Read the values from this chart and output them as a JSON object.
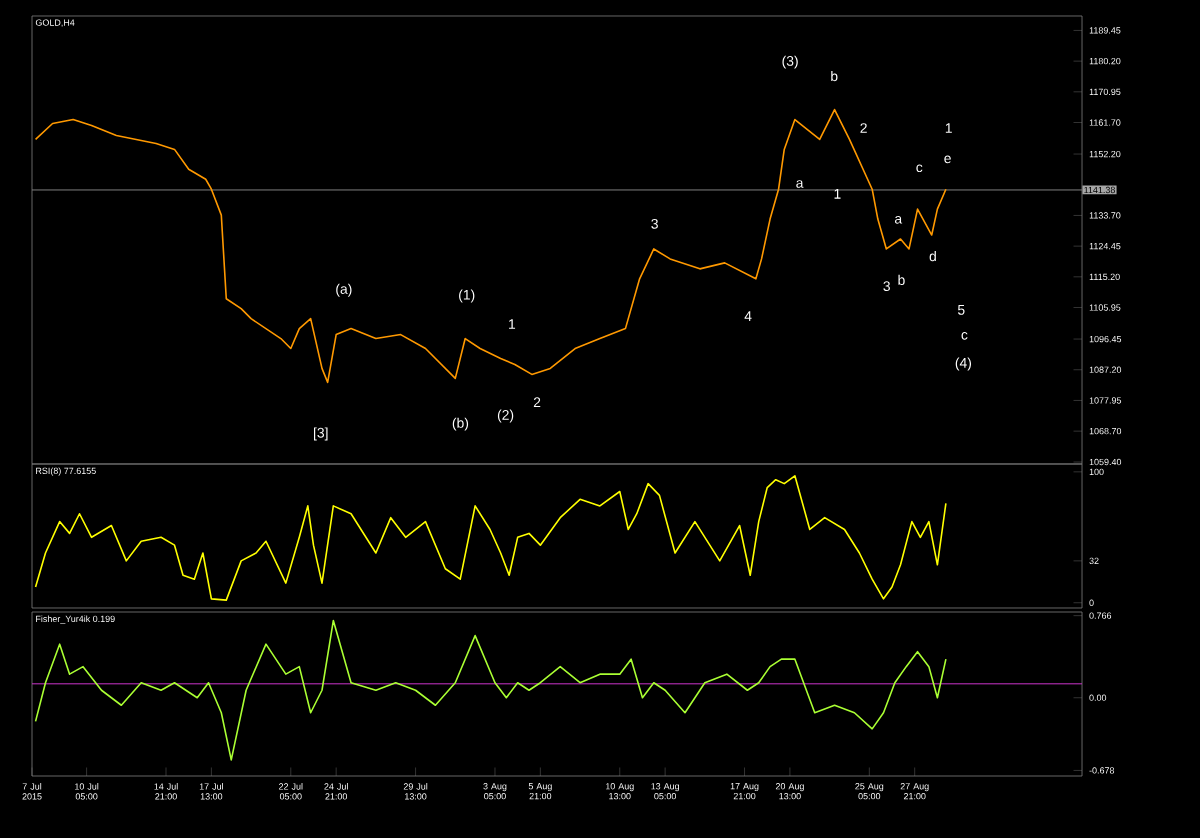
{
  "chart_data": [
    {
      "type": "line",
      "title": "GOLD,H4",
      "x": [
        "2015-07-07T05:00",
        "2015-07-08T05:00",
        "2015-07-09T10:00",
        "2015-07-10T12:00",
        "2015-07-11T23:00",
        "2015-07-14T07:00",
        "2015-07-15T09:00",
        "2015-07-16T05:00",
        "2015-07-17T05:00",
        "2015-07-17T13:00",
        "2015-07-18T03:00",
        "2015-07-18T10:00",
        "2015-07-19T07:00",
        "2015-07-19T21:00",
        "2015-07-21T15:00",
        "2015-07-22T05:00",
        "2015-07-22T17:00",
        "2015-07-23T09:00",
        "2015-07-24T01:00",
        "2015-07-24T09:00",
        "2015-07-24T21:00",
        "2015-07-25T18:00",
        "2015-07-27T05:00",
        "2015-07-28T16:00",
        "2015-07-30T03:00",
        "2015-07-31T21:00",
        "2015-08-01T11:00",
        "2015-08-02T08:00",
        "2015-08-03T13:00",
        "2015-08-04T09:00",
        "2015-08-05T09:00",
        "2015-08-06T11:00",
        "2015-08-07T22:00",
        "2015-08-09T09:00",
        "2015-08-10T21:00",
        "2015-08-11T17:00",
        "2015-08-12T13:00",
        "2015-08-13T12:00",
        "2015-08-15T06:00",
        "2015-08-16T17:00",
        "2015-08-18T13:00",
        "2015-08-18T21:00",
        "2015-08-19T09:00",
        "2015-08-19T21:00",
        "2015-08-20T05:00",
        "2015-08-20T20:00",
        "2015-08-22T07:00",
        "2015-08-23T04:00",
        "2015-08-24T01:00",
        "2015-08-25T09:00",
        "2015-08-25T17:00",
        "2015-08-26T05:00",
        "2015-08-27T01:00",
        "2015-08-27T13:00",
        "2015-08-28T01:00",
        "2015-08-28T21:00",
        "2015-08-29T05:00",
        "2015-08-29T17:00"
      ],
      "series": [
        {
          "color": "#ff9900",
          "values": [
            1156.6,
            1161.4,
            1162.6,
            1160.8,
            1157.8,
            1155.4,
            1153.6,
            1147.6,
            1144.6,
            1141.6,
            1133.8,
            1108.6,
            1105.6,
            1102.6,
            1096.6,
            1093.6,
            1099.6,
            1102.6,
            1087.6,
            1083.4,
            1097.8,
            1099.6,
            1096.6,
            1097.8,
            1093.6,
            1084.6,
            1096.6,
            1093.6,
            1090.6,
            1088.8,
            1085.8,
            1087.6,
            1093.6,
            1096.6,
            1099.6,
            1114.6,
            1123.6,
            1120.6,
            1117.6,
            1119.4,
            1114.6,
            1120.6,
            1132.6,
            1141.6,
            1153.6,
            1162.6,
            1156.6,
            1165.6,
            1156.6,
            1141.6,
            1132.6,
            1123.6,
            1126.6,
            1123.6,
            1135.6,
            1127.8,
            1135.6,
            1141.6
          ]
        }
      ],
      "xlim": [
        "2015-07-07T00:00",
        "2015-09-06T17:00"
      ],
      "ylim": [
        1058.8,
        1193.8
      ],
      "yticks": [
        1189.45,
        {
          "value": 1180.2,
          "label": "1180.20"
        },
        1170.95,
        {
          "value": 1161.7,
          "label": "1161.70"
        },
        {
          "value": 1152.2,
          "label": "1152.20"
        },
        {
          "value": 1133.7,
          "label": "1133.70"
        },
        1124.45,
        {
          "value": 1115.2,
          "label": "1115.20"
        },
        1105.95,
        1096.45,
        {
          "value": 1087.2,
          "label": "1087.20"
        },
        1077.95,
        {
          "value": 1068.7,
          "label": "1068.70"
        },
        {
          "value": 1059.4,
          "label": "1059.40"
        }
      ],
      "tick_labels": "y",
      "ref_lines": [
        {
          "axis": "y",
          "value": 1141.38,
          "label": "1141.38",
          "color": "#808080"
        }
      ],
      "annotations": [
        "(a)",
        "(1)",
        "[3]",
        "(b)",
        "(2)",
        "1",
        "2",
        "3",
        "4",
        "(3)",
        "b",
        "a",
        "1",
        "2",
        "3",
        "a",
        "b",
        "c",
        "d",
        "e",
        "1",
        "5",
        "c",
        "(4)"
      ]
    },
    {
      "type": "line",
      "title": "RSI(8) 77.6155",
      "x": [
        "2015-07-07T05:00",
        "2015-07-07T19:00",
        "2015-07-08T15:00",
        "2015-07-09T05:00",
        "2015-07-09T19:00",
        "2015-07-10T12:00",
        "2015-07-11T16:00",
        "2015-07-12T13:00",
        "2015-07-13T10:00",
        "2015-07-14T14:00",
        "2015-07-15T09:00",
        "2015-07-15T21:00",
        "2015-07-16T13:00",
        "2015-07-17T01:00",
        "2015-07-17T13:00",
        "2015-07-18T10:00",
        "2015-07-19T07:00",
        "2015-07-20T04:00",
        "2015-07-20T18:00",
        "2015-07-21T22:00",
        "2015-07-22T17:00",
        "2015-07-23T05:00",
        "2015-07-23T13:00",
        "2015-07-24T01:00",
        "2015-07-24T17:00",
        "2015-07-25T18:00",
        "2015-07-27T05:00",
        "2015-07-28T02:00",
        "2015-07-28T23:00",
        "2015-07-30T03:00",
        "2015-07-31T07:00",
        "2015-08-01T04:00",
        "2015-08-02T01:00",
        "2015-08-02T22:00",
        "2015-08-03T13:00",
        "2015-08-04T01:00",
        "2015-08-04T13:00",
        "2015-08-05T05:00",
        "2015-08-05T21:00",
        "2015-08-07T01:00",
        "2015-08-08T05:00",
        "2015-08-09T09:00",
        "2015-08-10T13:00",
        "2015-08-11T01:00",
        "2015-08-11T13:00",
        "2015-08-12T05:00",
        "2015-08-12T21:00",
        "2015-08-13T19:00",
        "2015-08-14T23:00",
        "2015-08-16T10:00",
        "2015-08-17T14:00",
        "2015-08-18T05:00",
        "2015-08-18T17:00",
        "2015-08-19T05:00",
        "2015-08-19T17:00",
        "2015-08-20T05:00",
        "2015-08-20T20:00",
        "2015-08-21T17:00",
        "2015-08-22T14:00",
        "2015-08-23T18:00",
        "2015-08-24T15:00",
        "2015-08-25T09:00",
        "2015-08-26T01:00",
        "2015-08-26T13:00",
        "2015-08-27T01:00",
        "2015-08-27T17:00",
        "2015-08-28T05:00",
        "2015-08-28T17:00",
        "2015-08-29T05:00",
        "2015-08-29T17:00"
      ],
      "series": [
        {
          "color": "#ffff00",
          "values": [
            12,
            38,
            62,
            53,
            68,
            50,
            59,
            32,
            47,
            50,
            44,
            21,
            18,
            38,
            3,
            2,
            32,
            38,
            47,
            15,
            50,
            74,
            44,
            15,
            74,
            68,
            38,
            65,
            50,
            62,
            26,
            18,
            74,
            56,
            38,
            21,
            50,
            53,
            44,
            65,
            79,
            74,
            85,
            56,
            68,
            91,
            82,
            38,
            62,
            32,
            59,
            21,
            62,
            88,
            94,
            91,
            97,
            56,
            65,
            56,
            38,
            18,
            3,
            12,
            29,
            62,
            50,
            62,
            29,
            76
          ]
        }
      ],
      "xlim": [
        "2015-07-07T00:00",
        "2015-09-06T17:00"
      ],
      "ylim": [
        -4,
        106
      ],
      "yticks": [
        0,
        32,
        100
      ],
      "tick_labels": "y"
    },
    {
      "type": "line",
      "title": "Fisher_Yur4ik 0.199",
      "x": [
        "2015-07-07T05:00",
        "2015-07-07T19:00",
        "2015-07-08T15:00",
        "2015-07-09T05:00",
        "2015-07-10T00:00",
        "2015-07-11T02:00",
        "2015-07-12T06:00",
        "2015-07-13T10:00",
        "2015-07-14T14:00",
        "2015-07-15T09:00",
        "2015-07-16T01:00",
        "2015-07-16T17:00",
        "2015-07-17T09:00",
        "2015-07-18T03:00",
        "2015-07-18T17:00",
        "2015-07-19T14:00",
        "2015-07-20T18:00",
        "2015-07-21T22:00",
        "2015-07-22T17:00",
        "2015-07-23T09:00",
        "2015-07-24T01:00",
        "2015-07-24T17:00",
        "2015-07-25T18:00",
        "2015-07-27T05:00",
        "2015-07-28T09:00",
        "2015-07-29T13:00",
        "2015-07-30T17:00",
        "2015-07-31T21:00",
        "2015-08-02T01:00",
        "2015-08-03T05:00",
        "2015-08-03T21:00",
        "2015-08-04T13:00",
        "2015-08-05T05:00",
        "2015-08-05T21:00",
        "2015-08-07T01:00",
        "2015-08-08T05:00",
        "2015-08-09T09:00",
        "2015-08-10T13:00",
        "2015-08-11T05:00",
        "2015-08-11T21:00",
        "2015-08-12T13:00",
        "2015-08-13T05:00",
        "2015-08-14T09:00",
        "2015-08-15T13:00",
        "2015-08-16T20:00",
        "2015-08-18T01:00",
        "2015-08-18T17:00",
        "2015-08-19T09:00",
        "2015-08-20T01:00",
        "2015-08-20T20:00",
        "2015-08-22T00:00",
        "2015-08-23T04:00",
        "2015-08-24T08:00",
        "2015-08-25T09:00",
        "2015-08-26T01:00",
        "2015-08-26T17:00",
        "2015-08-27T09:00",
        "2015-08-28T01:00",
        "2015-08-28T17:00",
        "2015-08-29T05:00",
        "2015-08-29T17:00"
      ],
      "series": [
        {
          "color": "#aaff33",
          "values": [
            -0.22,
            0.14,
            0.5,
            0.22,
            0.29,
            0.07,
            -0.07,
            0.14,
            0.07,
            0.14,
            0.07,
            0,
            0.14,
            -0.14,
            -0.58,
            0.07,
            0.5,
            0.22,
            0.29,
            -0.14,
            0.07,
            0.72,
            0.14,
            0.07,
            0.14,
            0.07,
            -0.07,
            0.14,
            0.58,
            0.14,
            0,
            0.14,
            0.07,
            0.14,
            0.29,
            0.14,
            0.22,
            0.22,
            0.36,
            0,
            0.14,
            0.07,
            -0.14,
            0.14,
            0.22,
            0.07,
            0.14,
            0.29,
            0.36,
            0.36,
            -0.14,
            -0.07,
            -0.14,
            -0.29,
            -0.14,
            0.14,
            0.29,
            0.43,
            0.29,
            0,
            0.36
          ]
        }
      ],
      "xlim": [
        "2015-07-07T00:00",
        "2015-09-06T17:00"
      ],
      "ylim": [
        -0.73,
        0.8
      ],
      "yticks": [
        -0.678,
        {
          "value": 0,
          "label": "0.00"
        },
        0.766
      ],
      "xticks": [
        {
          "value": "2015-07-07T00:00",
          "label": "7 Jul 2015"
        },
        {
          "value": "2015-07-10T05:00",
          "label": "10 Jul 05:00"
        },
        {
          "value": "2015-07-14T21:00",
          "label": "14 Jul 21:00"
        },
        {
          "value": "2015-07-17T13:00",
          "label": "17 Jul 13:00"
        },
        {
          "value": "2015-07-22T05:00",
          "label": "22 Jul 05:00"
        },
        {
          "value": "2015-07-24T21:00",
          "label": "24 Jul 21:00"
        },
        {
          "value": "2015-07-29T13:00",
          "label": "29 Jul 13:00"
        },
        {
          "value": "2015-08-03T05:00",
          "label": "3 Aug 05:00"
        },
        {
          "value": "2015-08-05T21:00",
          "label": "5 Aug 21:00"
        },
        {
          "value": "2015-08-10T13:00",
          "label": "10 Aug 13:00"
        },
        {
          "value": "2015-08-13T05:00",
          "label": "13 Aug 05:00"
        },
        {
          "value": "2015-08-17T21:00",
          "label": "17 Aug 21:00"
        },
        {
          "value": "2015-08-20T13:00",
          "label": "20 Aug 13:00"
        },
        {
          "value": "2015-08-25T05:00",
          "label": "25 Aug 05:00"
        },
        {
          "value": "2015-08-27T21:00",
          "label": "27 Aug 21:00"
        }
      ],
      "ref_lines": [
        {
          "axis": "y",
          "value": 0.13,
          "color": "#cc33cc"
        }
      ]
    }
  ]
}
